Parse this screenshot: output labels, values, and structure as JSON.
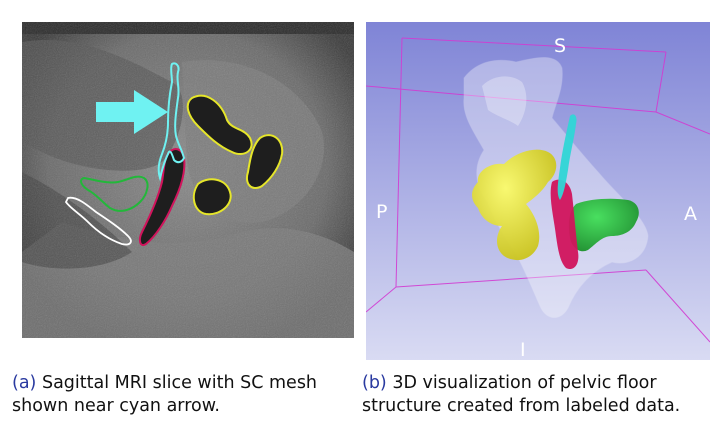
{
  "figure": {
    "panel_a": {
      "tag": "(a)",
      "caption_line1": "Sagittal MRI slice with SC mesh",
      "caption_line2": "shown near cyan arrow."
    },
    "panel_b": {
      "tag": "(b)",
      "caption_line1": "3D visualization of pelvic floor",
      "caption_line2": "structure created from labeled data.",
      "orientation_labels": {
        "superior": "S",
        "posterior": "P",
        "anterior": "A",
        "inferior": "I"
      }
    }
  },
  "colors": {
    "cyan": "#6ff2f2",
    "yellow": "#e6e62a",
    "green": "#22b83a",
    "magenta": "#d1145c",
    "white": "#ffffff",
    "render_background": "#8a8fd6",
    "bounding_box": "#d23bd2"
  }
}
